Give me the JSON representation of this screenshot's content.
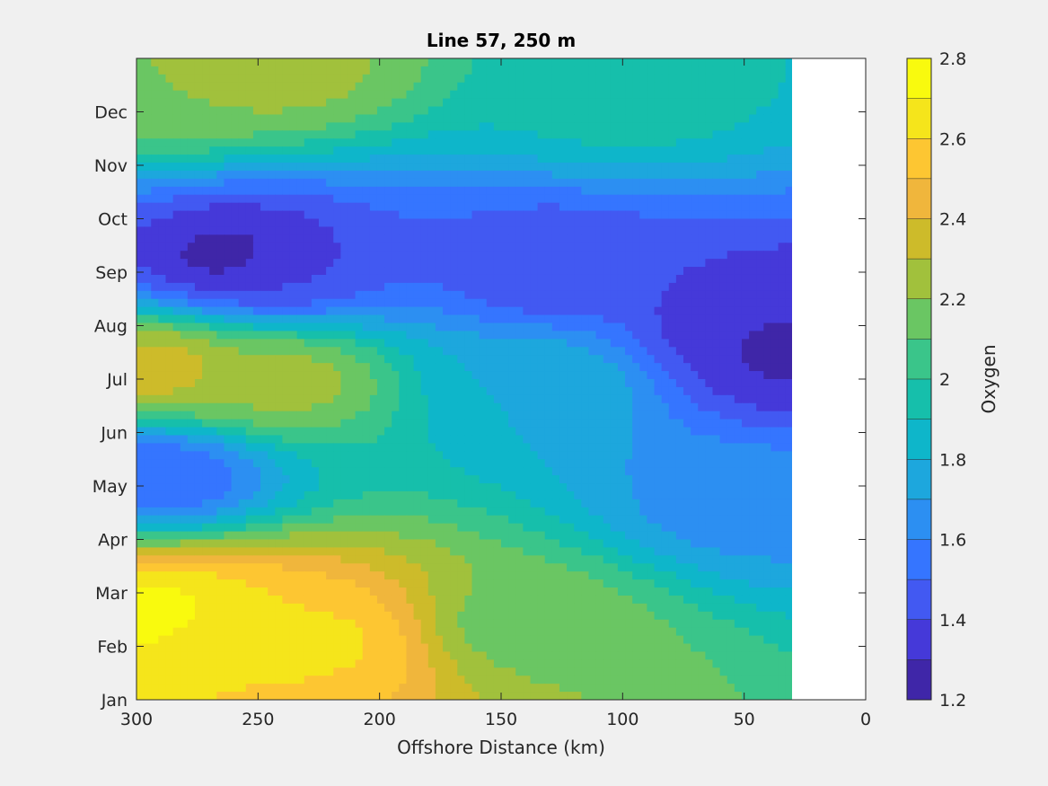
{
  "chart_data": {
    "type": "heatmap",
    "subtype": "filled-contour",
    "title": "Line 57, 250 m",
    "xlabel": "Offshore Distance (km)",
    "ylabel": "",
    "x_reversed": true,
    "xlim": [
      300,
      0
    ],
    "xticks": [
      300,
      250,
      200,
      150,
      100,
      50,
      0
    ],
    "ylim": [
      1,
      13
    ],
    "yticks": [
      1,
      2,
      3,
      4,
      5,
      6,
      7,
      8,
      9,
      10,
      11,
      12
    ],
    "ytick_labels": [
      "Jan",
      "Feb",
      "Mar",
      "Apr",
      "May",
      "Jun",
      "Jul",
      "Aug",
      "Sep",
      "Oct",
      "Nov",
      "Dec"
    ],
    "data_x_range": [
      300,
      30
    ],
    "colorbar": {
      "label": "Oxygen",
      "limits": [
        1.2,
        2.8
      ],
      "levels": [
        1.2,
        1.3,
        1.4,
        1.5,
        1.6,
        1.7,
        1.8,
        1.9,
        2.0,
        2.1,
        2.2,
        2.3,
        2.4,
        2.5,
        2.6,
        2.7,
        2.8
      ],
      "ticks": [
        1.2,
        1.4,
        1.6,
        1.8,
        2,
        2.2,
        2.4,
        2.6,
        2.8
      ],
      "tick_labels": [
        "1.2",
        "1.4",
        "1.6",
        "1.8",
        "2",
        "2.2",
        "2.4",
        "2.6",
        "2.8"
      ],
      "colors": [
        "#3f26a8",
        "#4539d9",
        "#4259f2",
        "#3575ff",
        "#2c8ff2",
        "#1da7dd",
        "#0eb6ca",
        "#16bfab",
        "#3ac58a",
        "#6ac663",
        "#a1c13c",
        "#cdbb2a",
        "#f0b63c",
        "#fdc632",
        "#f5e51b",
        "#f9fa0e"
      ]
    },
    "features": [
      {
        "x": 290,
        "y": 2.6,
        "value": 2.75
      },
      {
        "x": 225,
        "y": 2.1,
        "value": 2.62
      },
      {
        "x": 260,
        "y": 2.3,
        "value": 2.6
      },
      {
        "x": 290,
        "y": 7.2,
        "value": 2.35
      },
      {
        "x": 240,
        "y": 7.0,
        "value": 2.25
      },
      {
        "x": 290,
        "y": 5.2,
        "value": 1.5
      },
      {
        "x": 260,
        "y": 9.3,
        "value": 1.25
      },
      {
        "x": 240,
        "y": 9.1,
        "value": 1.4
      },
      {
        "x": 130,
        "y": 9.1,
        "value": 1.4
      },
      {
        "x": 30,
        "y": 7.5,
        "value": 1.28
      },
      {
        "x": 40,
        "y": 8.0,
        "value": 1.3
      },
      {
        "x": 135,
        "y": 6.9,
        "value": 1.8
      },
      {
        "x": 50,
        "y": 4.7,
        "value": 1.65
      },
      {
        "x": 290,
        "y": 12.5,
        "value": 2.2
      },
      {
        "x": 245,
        "y": 12.8,
        "value": 2.25
      },
      {
        "x": 100,
        "y": 12.3,
        "value": 1.95
      },
      {
        "x": 140,
        "y": 2.4,
        "value": 2.15
      }
    ]
  }
}
